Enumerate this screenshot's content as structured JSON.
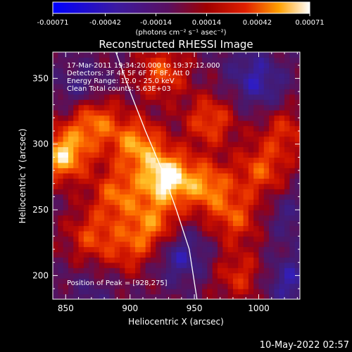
{
  "chart_data": {
    "type": "heatmap",
    "title": "Reconstructed RHESSI Image",
    "xlabel": "Heliocentric X (arcsec)",
    "ylabel": "Heliocentric Y (arcsec)",
    "xlim": [
      840,
      1032
    ],
    "ylim": [
      182,
      370
    ],
    "x_ticks": [
      850,
      900,
      950,
      1000
    ],
    "y_ticks": [
      200,
      250,
      300,
      350
    ],
    "colorbar": {
      "range": [
        -0.00071,
        0.00071
      ],
      "tick_values": [
        -0.00071,
        -0.00042,
        -0.00014,
        0.00014,
        0.00042,
        0.00071
      ],
      "tick_labels": [
        "-0.00071",
        "-0.00042",
        "-0.00014",
        "0.00014",
        "0.00042",
        "0.00071"
      ],
      "unit_label": "(photons cm⁻² s⁻¹ asec⁻²)"
    },
    "peak": {
      "x": 928,
      "y": 275
    },
    "bright_regions": [
      {
        "x": 928,
        "y": 275,
        "value": 0.00071
      },
      {
        "x": 848,
        "y": 292,
        "value": 0.0006
      },
      {
        "x": 872,
        "y": 318,
        "value": 0.0004
      },
      {
        "x": 905,
        "y": 300,
        "value": 0.00045
      },
      {
        "x": 960,
        "y": 268,
        "value": 0.0004
      },
      {
        "x": 890,
        "y": 262,
        "value": 0.00035
      },
      {
        "x": 962,
        "y": 318,
        "value": 0.0003
      },
      {
        "x": 1002,
        "y": 280,
        "value": 0.0003
      },
      {
        "x": 982,
        "y": 244,
        "value": 0.00028
      },
      {
        "x": 925,
        "y": 355,
        "value": 0.0003
      },
      {
        "x": 870,
        "y": 230,
        "value": 0.00025
      },
      {
        "x": 900,
        "y": 220,
        "value": 0.0002
      },
      {
        "x": 918,
        "y": 240,
        "value": 0.00035
      },
      {
        "x": 1020,
        "y": 310,
        "value": 0.0002
      },
      {
        "x": 985,
        "y": 200,
        "value": 0.0002
      }
    ],
    "dark_regions": [
      {
        "x": 940,
        "y": 215,
        "value": -0.0005
      },
      {
        "x": 1002,
        "y": 345,
        "value": -0.00045
      },
      {
        "x": 1025,
        "y": 195,
        "value": -0.0005
      },
      {
        "x": 862,
        "y": 342,
        "value": -0.0004
      },
      {
        "x": 1025,
        "y": 245,
        "value": -0.00035
      },
      {
        "x": 990,
        "y": 362,
        "value": -0.0003
      },
      {
        "x": 870,
        "y": 185,
        "value": -0.0003
      }
    ],
    "limb": [
      {
        "x": 889,
        "y": 370
      },
      {
        "x": 900,
        "y": 340
      },
      {
        "x": 912,
        "y": 310
      },
      {
        "x": 925,
        "y": 280
      },
      {
        "x": 936,
        "y": 250
      },
      {
        "x": 946,
        "y": 220
      },
      {
        "x": 952,
        "y": 182
      }
    ]
  },
  "annotations": {
    "time_range": "17-Mar-2011 19:34:20.000 to 19:37:12.000",
    "detectors": "Detectors: 3F 4F 5F 6F 7F 8F, Att 0",
    "energy_range": "Energy Range: 12.0 - 25.0 keV",
    "method": "Clean    Total counts: 5.63E+03",
    "peak_position": "Position of Peak = [928,275]"
  },
  "footer": {
    "timestamp": "10-May-2022 02:57"
  }
}
